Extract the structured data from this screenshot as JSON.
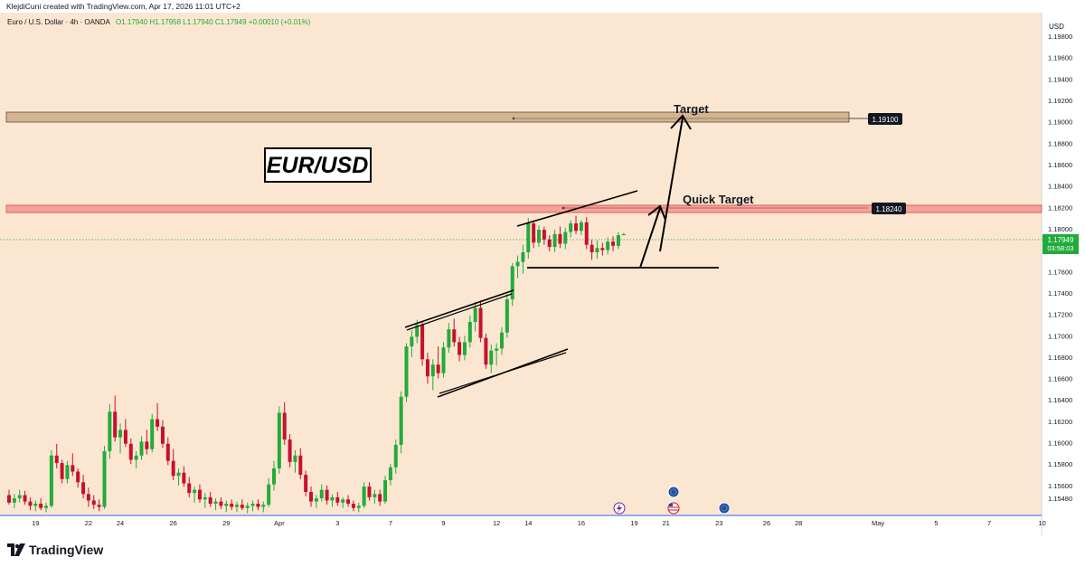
{
  "header": {
    "credit": "KlejdiCuni created with TradingView.com, Apr 17, 2026 11:01 UTC+2",
    "instrument": "Euro / U.S. Dollar · 4h · OANDA",
    "ohlc": "O1.17940 H1.17958 L1.17940 C1.17949 +0.00010 (+0.01%)"
  },
  "currency": "USD",
  "annotations": {
    "title": "EUR/USD",
    "target_label": "Target",
    "quick_target_label": "Quick Target"
  },
  "price_tags": {
    "target": "1.19100",
    "quick_target": "1.18240",
    "last": "1.17949",
    "countdown": "03:58:03"
  },
  "footer": {
    "brand": "TradingView"
  },
  "colors": {
    "background": "#fbe7d1",
    "up": "#22ab3a",
    "down": "#c8102e",
    "target_zone": "#d4b491",
    "quick_zone": "#f4a39c"
  },
  "chart_data": {
    "type": "candlestick",
    "symbol": "EUR/USD",
    "timeframe": "4h",
    "y_axis": {
      "range": [
        1.1532,
        1.2002
      ],
      "ticks": [
        "1.15480",
        "1.15600",
        "1.15800",
        "1.16000",
        "1.16200",
        "1.16400",
        "1.16600",
        "1.16800",
        "1.17000",
        "1.17200",
        "1.17400",
        "1.17600",
        "1.17800",
        "1.18000",
        "1.18200",
        "1.18400",
        "1.18600",
        "1.18800",
        "1.19000",
        "1.19200",
        "1.19400",
        "1.19600",
        "1.19800"
      ]
    },
    "x_axis": {
      "ticks": [
        {
          "label": "19",
          "bar": 5
        },
        {
          "label": "22",
          "bar": 15
        },
        {
          "label": "24",
          "bar": 21
        },
        {
          "label": "26",
          "bar": 31
        },
        {
          "label": "29",
          "bar": 41
        },
        {
          "label": "Apr",
          "bar": 51
        },
        {
          "label": "3",
          "bar": 62
        },
        {
          "label": "7",
          "bar": 72
        },
        {
          "label": "9",
          "bar": 82
        },
        {
          "label": "12",
          "bar": 92
        },
        {
          "label": "14",
          "bar": 98
        },
        {
          "label": "16",
          "bar": 108
        },
        {
          "label": "19",
          "bar": 118
        },
        {
          "label": "21",
          "bar": 124
        },
        {
          "label": "23",
          "bar": 134
        },
        {
          "label": "26",
          "bar": 143
        },
        {
          "label": "28",
          "bar": 149
        },
        {
          "label": "May",
          "bar": 164
        },
        {
          "label": "5",
          "bar": 175
        },
        {
          "label": "7",
          "bar": 185
        },
        {
          "label": "10",
          "bar": 195
        }
      ]
    },
    "levels": [
      {
        "name": "Target",
        "price": 1.191
      },
      {
        "name": "Quick Target",
        "price": 1.1824
      }
    ],
    "last_price": 1.17949,
    "candles": [
      [
        1.1551,
        1.1556,
        1.1542,
        1.1544
      ],
      [
        1.1544,
        1.1552,
        1.1539,
        1.1548
      ],
      [
        1.1548,
        1.1556,
        1.1544,
        1.1551
      ],
      [
        1.1551,
        1.1555,
        1.1542,
        1.1545
      ],
      [
        1.1545,
        1.1549,
        1.1537,
        1.1541
      ],
      [
        1.1541,
        1.1546,
        1.1536,
        1.1543
      ],
      [
        1.1543,
        1.1548,
        1.1537,
        1.1539
      ],
      [
        1.1539,
        1.1544,
        1.1535,
        1.1541
      ],
      [
        1.1541,
        1.1593,
        1.1539,
        1.1588
      ],
      [
        1.1588,
        1.1599,
        1.1576,
        1.1581
      ],
      [
        1.1581,
        1.1584,
        1.1562,
        1.1566
      ],
      [
        1.1566,
        1.1583,
        1.1562,
        1.1579
      ],
      [
        1.1579,
        1.159,
        1.1569,
        1.1573
      ],
      [
        1.1573,
        1.1576,
        1.1558,
        1.1563
      ],
      [
        1.1563,
        1.157,
        1.1548,
        1.1552
      ],
      [
        1.1552,
        1.1558,
        1.154,
        1.1546
      ],
      [
        1.1546,
        1.1551,
        1.1538,
        1.1542
      ],
      [
        1.1542,
        1.1547,
        1.1536,
        1.154
      ],
      [
        1.154,
        1.1597,
        1.1538,
        1.1592
      ],
      [
        1.1592,
        1.1636,
        1.1585,
        1.1629
      ],
      [
        1.1629,
        1.1644,
        1.1601,
        1.1605
      ],
      [
        1.1605,
        1.1618,
        1.159,
        1.1612
      ],
      [
        1.1612,
        1.1622,
        1.1596,
        1.1599
      ],
      [
        1.1599,
        1.1604,
        1.158,
        1.1584
      ],
      [
        1.1584,
        1.1592,
        1.1576,
        1.1588
      ],
      [
        1.1588,
        1.1606,
        1.1584,
        1.1601
      ],
      [
        1.1601,
        1.1612,
        1.1589,
        1.1594
      ],
      [
        1.1594,
        1.1627,
        1.1591,
        1.1622
      ],
      [
        1.1622,
        1.1637,
        1.1611,
        1.1615
      ],
      [
        1.1615,
        1.1621,
        1.1595,
        1.1599
      ],
      [
        1.1599,
        1.1605,
        1.1579,
        1.1583
      ],
      [
        1.1583,
        1.1594,
        1.1565,
        1.1569
      ],
      [
        1.1569,
        1.1576,
        1.156,
        1.1572
      ],
      [
        1.1572,
        1.1578,
        1.1559,
        1.1562
      ],
      [
        1.1562,
        1.1568,
        1.1549,
        1.1553
      ],
      [
        1.1553,
        1.1559,
        1.1544,
        1.1556
      ],
      [
        1.1556,
        1.1561,
        1.1544,
        1.1547
      ],
      [
        1.1547,
        1.1553,
        1.1539,
        1.1549
      ],
      [
        1.1549,
        1.1554,
        1.154,
        1.1543
      ],
      [
        1.1543,
        1.1548,
        1.1537,
        1.1545
      ],
      [
        1.1545,
        1.1549,
        1.1538,
        1.1541
      ],
      [
        1.1541,
        1.1546,
        1.1535,
        1.1543
      ],
      [
        1.1543,
        1.1547,
        1.1537,
        1.154
      ],
      [
        1.154,
        1.1545,
        1.1535,
        1.1542
      ],
      [
        1.1542,
        1.1547,
        1.1537,
        1.1539
      ],
      [
        1.1539,
        1.1544,
        1.1534,
        1.1541
      ],
      [
        1.1541,
        1.1546,
        1.1536,
        1.1543
      ],
      [
        1.1543,
        1.1547,
        1.1537,
        1.154
      ],
      [
        1.154,
        1.1545,
        1.1535,
        1.1542
      ],
      [
        1.1542,
        1.1567,
        1.154,
        1.1561
      ],
      [
        1.1561,
        1.1583,
        1.1555,
        1.1576
      ],
      [
        1.1576,
        1.1634,
        1.1571,
        1.1628
      ],
      [
        1.1628,
        1.1638,
        1.1598,
        1.1603
      ],
      [
        1.1603,
        1.1608,
        1.1577,
        1.1582
      ],
      [
        1.1582,
        1.1593,
        1.1572,
        1.1588
      ],
      [
        1.1588,
        1.1595,
        1.1566,
        1.157
      ],
      [
        1.157,
        1.1574,
        1.155,
        1.1554
      ],
      [
        1.1554,
        1.1559,
        1.154,
        1.1545
      ],
      [
        1.1545,
        1.1551,
        1.1539,
        1.1548
      ],
      [
        1.1548,
        1.1561,
        1.1545,
        1.1556
      ],
      [
        1.1556,
        1.156,
        1.1542,
        1.1546
      ],
      [
        1.1546,
        1.1552,
        1.154,
        1.1549
      ],
      [
        1.1549,
        1.1554,
        1.1541,
        1.1544
      ],
      [
        1.1544,
        1.1549,
        1.1539,
        1.1547
      ],
      [
        1.1547,
        1.1551,
        1.154,
        1.1543
      ],
      [
        1.1543,
        1.1546,
        1.1536,
        1.1539
      ],
      [
        1.1539,
        1.1544,
        1.1535,
        1.1541
      ],
      [
        1.1541,
        1.1563,
        1.1539,
        1.1559
      ],
      [
        1.1559,
        1.1563,
        1.1546,
        1.1549
      ],
      [
        1.1549,
        1.1556,
        1.1543,
        1.1552
      ],
      [
        1.1552,
        1.1556,
        1.1541,
        1.1545
      ],
      [
        1.1545,
        1.1569,
        1.1543,
        1.1565
      ],
      [
        1.1565,
        1.158,
        1.156,
        1.1577
      ],
      [
        1.1577,
        1.1603,
        1.1571,
        1.1598
      ],
      [
        1.1598,
        1.1648,
        1.159,
        1.1643
      ],
      [
        1.1643,
        1.1693,
        1.1638,
        1.169
      ],
      [
        1.169,
        1.1705,
        1.168,
        1.1699
      ],
      [
        1.1699,
        1.1715,
        1.1693,
        1.171
      ],
      [
        1.171,
        1.1714,
        1.1672,
        1.1678
      ],
      [
        1.1678,
        1.1684,
        1.1655,
        1.1662
      ],
      [
        1.1662,
        1.1678,
        1.1649,
        1.1673
      ],
      [
        1.1673,
        1.169,
        1.166,
        1.1665
      ],
      [
        1.1665,
        1.1694,
        1.1661,
        1.1689
      ],
      [
        1.1689,
        1.1712,
        1.1684,
        1.1706
      ],
      [
        1.1706,
        1.1716,
        1.169,
        1.1694
      ],
      [
        1.1694,
        1.1699,
        1.1676,
        1.1682
      ],
      [
        1.1682,
        1.17,
        1.1677,
        1.1694
      ],
      [
        1.1694,
        1.1719,
        1.1689,
        1.1713
      ],
      [
        1.1713,
        1.1732,
        1.1704,
        1.1726
      ],
      [
        1.1726,
        1.1733,
        1.1694,
        1.1698
      ],
      [
        1.1698,
        1.1702,
        1.1669,
        1.1673
      ],
      [
        1.1673,
        1.1692,
        1.1665,
        1.1686
      ],
      [
        1.1686,
        1.1693,
        1.1672,
        1.1688
      ],
      [
        1.1688,
        1.1708,
        1.1682,
        1.1703
      ],
      [
        1.1703,
        1.1739,
        1.1698,
        1.1734
      ],
      [
        1.1734,
        1.1768,
        1.1728,
        1.1765
      ],
      [
        1.1765,
        1.1775,
        1.1754,
        1.1769
      ],
      [
        1.1769,
        1.1785,
        1.1758,
        1.1778
      ],
      [
        1.1778,
        1.181,
        1.1772,
        1.1805
      ],
      [
        1.1805,
        1.1808,
        1.1782,
        1.1787
      ],
      [
        1.1787,
        1.1803,
        1.1783,
        1.1799
      ],
      [
        1.1799,
        1.1802,
        1.1785,
        1.179
      ],
      [
        1.179,
        1.1794,
        1.1779,
        1.1783
      ],
      [
        1.1783,
        1.1799,
        1.1778,
        1.1795
      ],
      [
        1.1795,
        1.1802,
        1.1782,
        1.1786
      ],
      [
        1.1786,
        1.1801,
        1.1781,
        1.1797
      ],
      [
        1.1797,
        1.1808,
        1.1792,
        1.1805
      ],
      [
        1.1805,
        1.1812,
        1.1795,
        1.1798
      ],
      [
        1.1798,
        1.1808,
        1.1794,
        1.1806
      ],
      [
        1.1806,
        1.1811,
        1.1781,
        1.1785
      ],
      [
        1.1785,
        1.179,
        1.1771,
        1.1778
      ],
      [
        1.1778,
        1.1789,
        1.1772,
        1.1782
      ],
      [
        1.1782,
        1.1787,
        1.1775,
        1.178
      ],
      [
        1.178,
        1.1792,
        1.1776,
        1.1788
      ],
      [
        1.1788,
        1.1793,
        1.1779,
        1.1784
      ],
      [
        1.1784,
        1.1797,
        1.1781,
        1.1794
      ],
      [
        1.1794,
        1.1796,
        1.1794,
        1.1795
      ]
    ]
  }
}
